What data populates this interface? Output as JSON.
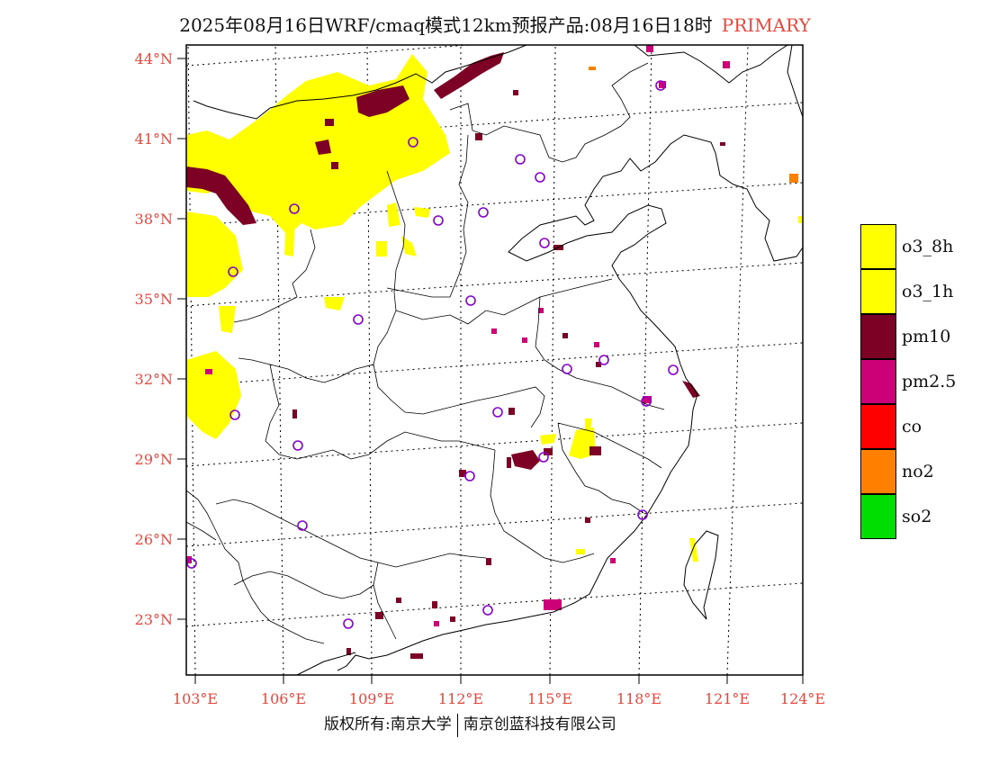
{
  "title": {
    "main": "2025年08月16日WRF/cmaq模式12km预报产品:08月16日18时",
    "tag": "PRIMARY"
  },
  "map": {
    "lat_labels": [
      "44°N",
      "41°N",
      "38°N",
      "35°N",
      "32°N",
      "29°N",
      "26°N",
      "23°N"
    ],
    "lon_labels": [
      "103°E",
      "106°E",
      "109°E",
      "112°E",
      "115°E",
      "118°E",
      "121°E",
      "124°E"
    ],
    "label_color": "#e8473d",
    "extent": {
      "lon": [
        103,
        124
      ],
      "lat": [
        21,
        44.5
      ]
    }
  },
  "legend": [
    {
      "label": "o3_8h",
      "color": "#ffff00"
    },
    {
      "label": "o3_1h",
      "color": "#ffff00"
    },
    {
      "label": "pm10",
      "color": "#7d0025"
    },
    {
      "label": "pm2.5",
      "color": "#cc0077"
    },
    {
      "label": "co",
      "color": "#ff0000"
    },
    {
      "label": "no2",
      "color": "#ff8000"
    },
    {
      "label": "so2",
      "color": "#00dd00"
    }
  ],
  "footer": {
    "copyright": "版权所有:南京大学",
    "company": "南京创蓝科技有限公司"
  }
}
